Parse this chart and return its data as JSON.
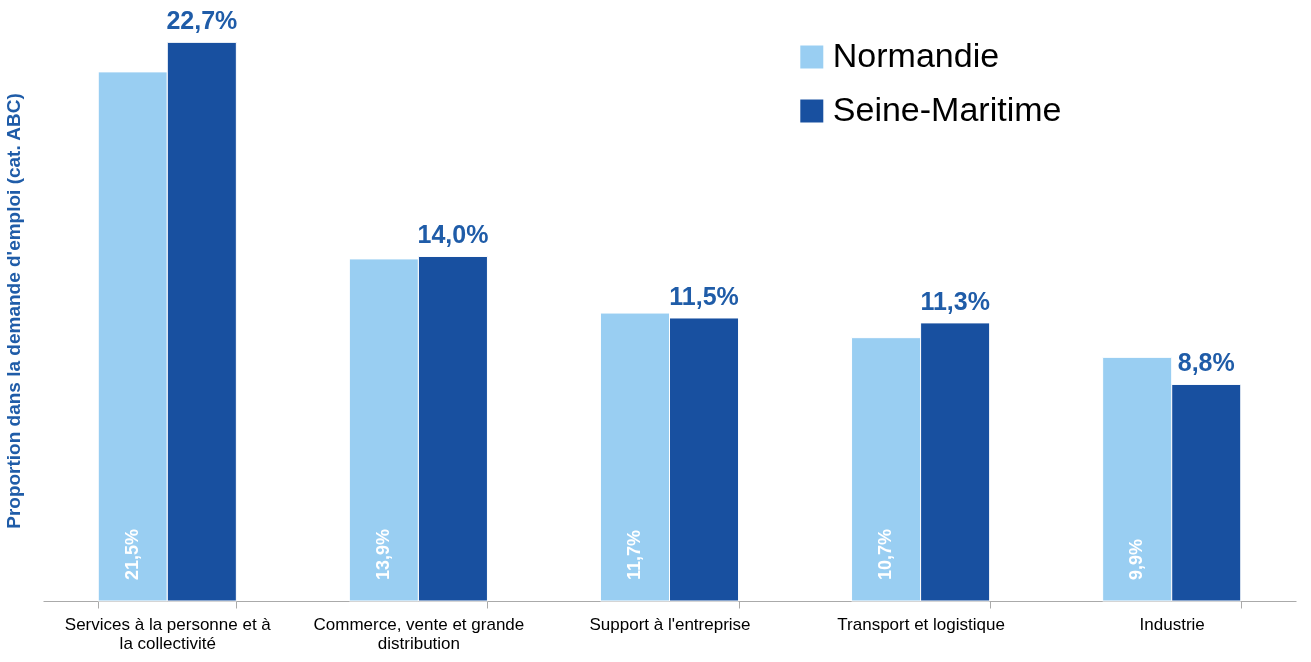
{
  "chart_data": {
    "type": "bar",
    "ylabel": "Proportion dans la demande d'emploi (cat. ABC)",
    "categories": [
      "Services à la personne et à la collectivité",
      "Commerce, vente et grande distribution",
      "Support à l'entreprise",
      "Transport et logistique",
      "Industrie"
    ],
    "series": [
      {
        "name": "Normandie",
        "color": "#99cef2",
        "values": [
          21.5,
          13.9,
          11.7,
          10.7,
          9.9
        ],
        "value_labels": [
          "21,5%",
          "13,9%",
          "11,7%",
          "10,7%",
          "9,9%"
        ]
      },
      {
        "name": "Seine-Maritime",
        "color": "#1850a0",
        "values": [
          22.7,
          14.0,
          11.5,
          11.3,
          8.8
        ],
        "value_labels": [
          "22,7%",
          "14,0%",
          "11,5%",
          "11,3%",
          "8,8%"
        ]
      }
    ],
    "legend": "top right"
  }
}
